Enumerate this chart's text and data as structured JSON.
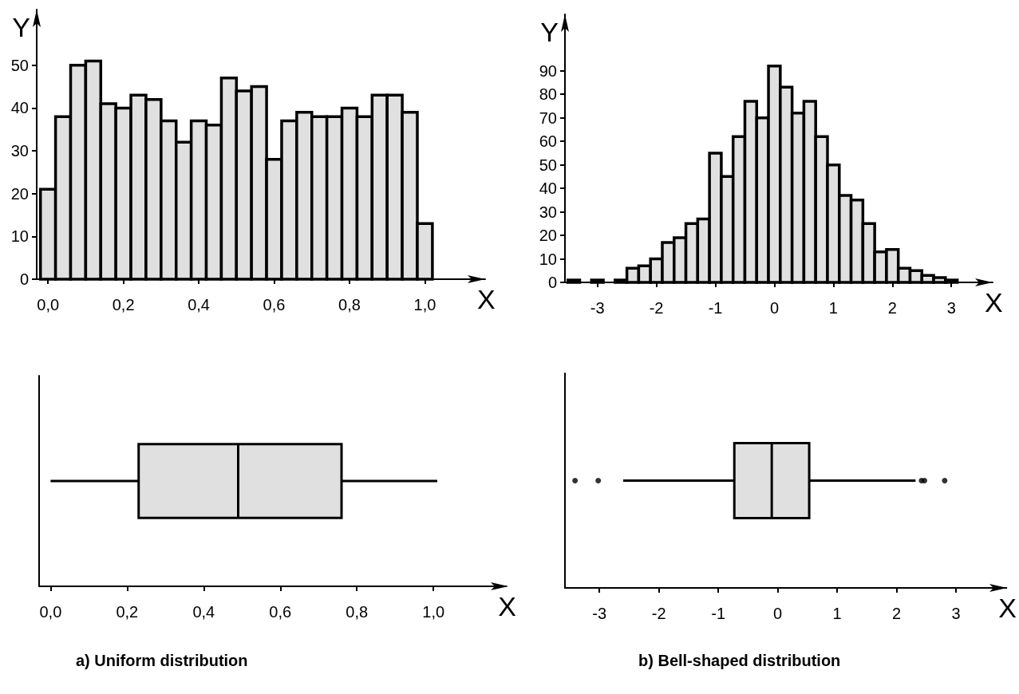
{
  "chart_data": [
    {
      "type": "histogram",
      "xlabel": "X",
      "ylabel": "Y",
      "color": "#e0e0e0",
      "bins": [
        -0.02,
        0.02,
        0.06,
        0.1,
        0.14,
        0.18,
        0.22,
        0.26,
        0.3,
        0.34,
        0.38,
        0.42,
        0.46,
        0.5,
        0.54,
        0.58,
        0.62,
        0.66,
        0.7,
        0.74,
        0.78,
        0.82,
        0.86,
        0.9,
        0.94,
        0.98,
        1.02
      ],
      "values": [
        21,
        38,
        50,
        51,
        41,
        40,
        43,
        42,
        37,
        32,
        37,
        36,
        47,
        44,
        45,
        28,
        37,
        39,
        38,
        38,
        40,
        38,
        43,
        43,
        39,
        13
      ],
      "xlim": [
        -0.03,
        1.16
      ],
      "ylim": [
        0,
        63
      ],
      "xticks": [
        {
          "value": 0,
          "label": "0,0"
        },
        {
          "value": 0.2,
          "label": "0,2"
        },
        {
          "value": 0.4,
          "label": "0,4"
        },
        {
          "value": 0.6,
          "label": "0,6"
        },
        {
          "value": 0.8,
          "label": "0,8"
        },
        {
          "value": 1,
          "label": "1,0"
        }
      ],
      "yticks": [
        0,
        10,
        20,
        30,
        40,
        50
      ],
      "grid": false
    },
    {
      "type": "histogram",
      "xlabel": "X",
      "ylabel": "Y",
      "color": "#e0e0e0",
      "bins": [
        -3.5,
        -3.3,
        -3.1,
        -2.9,
        -2.7,
        -2.5,
        -2.3,
        -2.1,
        -1.9,
        -1.7,
        -1.5,
        -1.3,
        -1.1,
        -0.9,
        -0.7,
        -0.5,
        -0.3,
        -0.1,
        0.1,
        0.3,
        0.5,
        0.7,
        0.9,
        1.1,
        1.3,
        1.5,
        1.7,
        1.9,
        2.1,
        2.3,
        2.5,
        2.7,
        2.9,
        3.1
      ],
      "values": [
        1,
        0,
        1,
        0,
        1,
        6,
        7,
        10,
        17,
        19,
        25,
        27,
        55,
        45,
        62,
        77,
        70,
        92,
        83,
        72,
        77,
        62,
        50,
        37,
        35,
        25,
        13,
        14,
        6,
        5,
        3,
        2,
        1
      ],
      "xlim": [
        -3.55,
        3.7
      ],
      "ylim": [
        0,
        114
      ],
      "xticks": [
        -3,
        -2,
        -1,
        0,
        1,
        2,
        3
      ],
      "yticks": [
        0,
        10,
        20,
        30,
        40,
        50,
        60,
        70,
        80,
        90
      ],
      "grid": false
    },
    {
      "type": "box",
      "orientation": "horizontal",
      "xlabel": "X",
      "color": "#e0e0e0",
      "categories": [
        null
      ],
      "boxes": [
        {
          "low": 0.0,
          "q1": 0.23,
          "median": 0.49,
          "q3": 0.76,
          "high": 1.01
        }
      ],
      "xlim": [
        -0.03,
        1.19
      ],
      "xticks": [
        {
          "value": 0,
          "label": "0,0"
        },
        {
          "value": 0.2,
          "label": "0,2"
        },
        {
          "value": 0.4,
          "label": "0,4"
        },
        {
          "value": 0.6,
          "label": "0,6"
        },
        {
          "value": 0.8,
          "label": "0,8"
        },
        {
          "value": 1,
          "label": "1,0"
        }
      ],
      "tick_labels": "x",
      "grid": false,
      "annotations": [
        "a) Uniform distribution"
      ]
    },
    {
      "type": "box",
      "orientation": "horizontal",
      "xlabel": "X",
      "color": "#e0e0e0",
      "categories": [
        null
      ],
      "marker": "circle",
      "boxes": [
        {
          "low": -2.6,
          "q1": -0.73,
          "median": -0.1,
          "q3": 0.53,
          "high": 2.32,
          "outliers": [
            -3.41,
            -3.02,
            2.42,
            2.47,
            2.81
          ]
        }
      ],
      "xlim": [
        -3.58,
        3.85
      ],
      "xticks": [
        -3,
        -2,
        -1,
        0,
        1,
        2,
        3
      ],
      "tick_labels": "x",
      "grid": false,
      "annotations": [
        "b) Bell-shaped distribution"
      ]
    }
  ]
}
